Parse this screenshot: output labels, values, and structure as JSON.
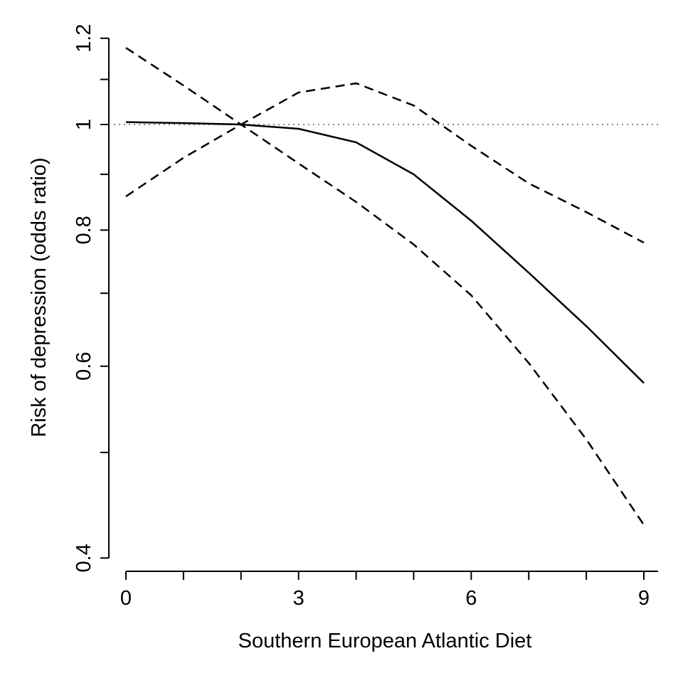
{
  "chart_data": {
    "type": "line",
    "title": "",
    "xlabel": "Southern European Atlantic Diet",
    "ylabel": "Risk of depression (odds ratio)",
    "x": [
      0,
      1,
      2,
      3,
      4,
      5,
      6,
      7,
      8,
      9
    ],
    "xlim": [
      0,
      9
    ],
    "ylim": [
      0.4,
      1.2
    ],
    "y_scale": "log",
    "grid": false,
    "x_ticks": [
      0,
      1,
      2,
      3,
      4,
      5,
      6,
      7,
      8,
      9
    ],
    "x_tick_labels": [
      "0",
      "",
      "",
      "3",
      "",
      "",
      "6",
      "",
      "",
      "9"
    ],
    "y_ticks": [
      0.4,
      0.5,
      0.6,
      0.7,
      0.8,
      0.9,
      1,
      1.1,
      1.2
    ],
    "y_tick_labels": [
      "0.4",
      "",
      "0.6",
      "",
      "0.8",
      "",
      "1",
      "",
      "1.2"
    ],
    "reference_line": {
      "y": 1,
      "style": "dotted",
      "color": "#888888"
    },
    "series": [
      {
        "style": "solid",
        "color": "#000000",
        "values": [
          1.005,
          1.003,
          1.0,
          0.991,
          0.963,
          0.9,
          0.816,
          0.731,
          0.653,
          0.579
        ]
      },
      {
        "style": "dashed",
        "color": "#000000",
        "values": [
          0.859,
          0.932,
          1.0,
          1.07,
          1.091,
          1.041,
          0.956,
          0.883,
          0.831,
          0.779
        ]
      },
      {
        "style": "dashed",
        "color": "#000000",
        "values": [
          1.176,
          1.086,
          1.0,
          0.921,
          0.849,
          0.776,
          0.697,
          0.604,
          0.514,
          0.429
        ]
      }
    ]
  }
}
